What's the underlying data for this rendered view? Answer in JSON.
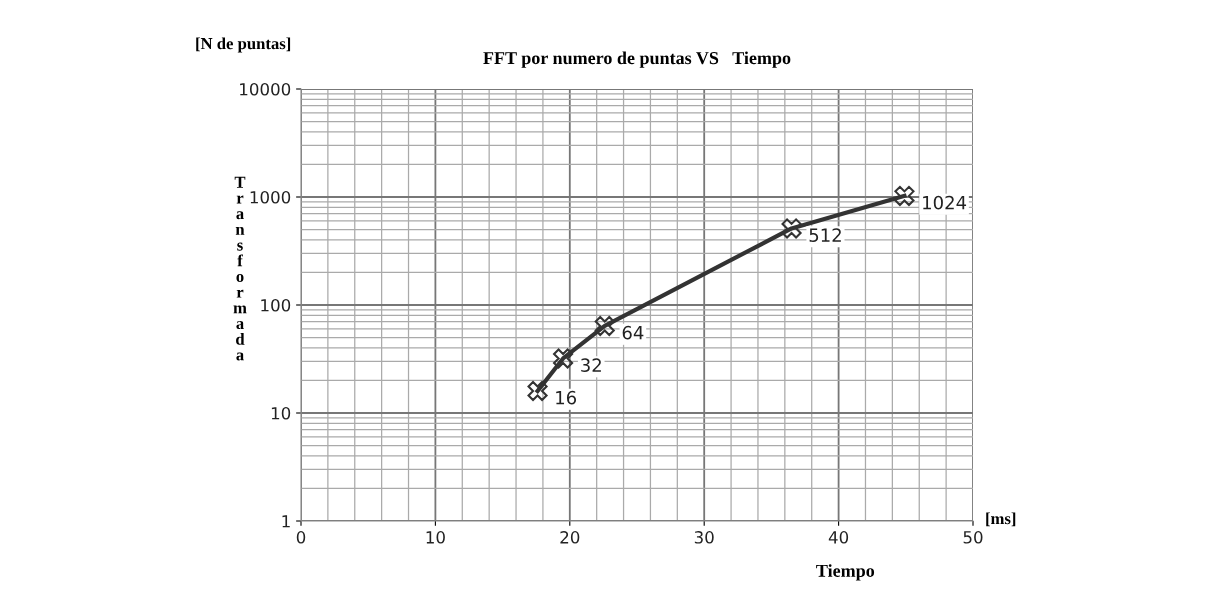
{
  "chart_data": {
    "type": "line",
    "marker": "cross",
    "title": "FFT por numero de puntas VS   Tiempo",
    "xlabel": "Tiempo",
    "ylabel": "Transformada",
    "annotations": [
      "[N de puntas]",
      "[ms]"
    ],
    "series": [
      {
        "color": "#333333",
        "x": [
          17.6,
          19.5,
          22.6,
          36.5,
          44.9
        ],
        "values": [
          16,
          32,
          64,
          512,
          1024
        ]
      }
    ],
    "data_labels": true,
    "log": "y",
    "grid": true,
    "xlim": [
      0,
      50
    ],
    "xticks": [
      0,
      10,
      20,
      30,
      40,
      50
    ],
    "ylim": [
      1,
      10000
    ],
    "yticks": [
      1,
      10,
      100,
      1000,
      10000
    ]
  }
}
